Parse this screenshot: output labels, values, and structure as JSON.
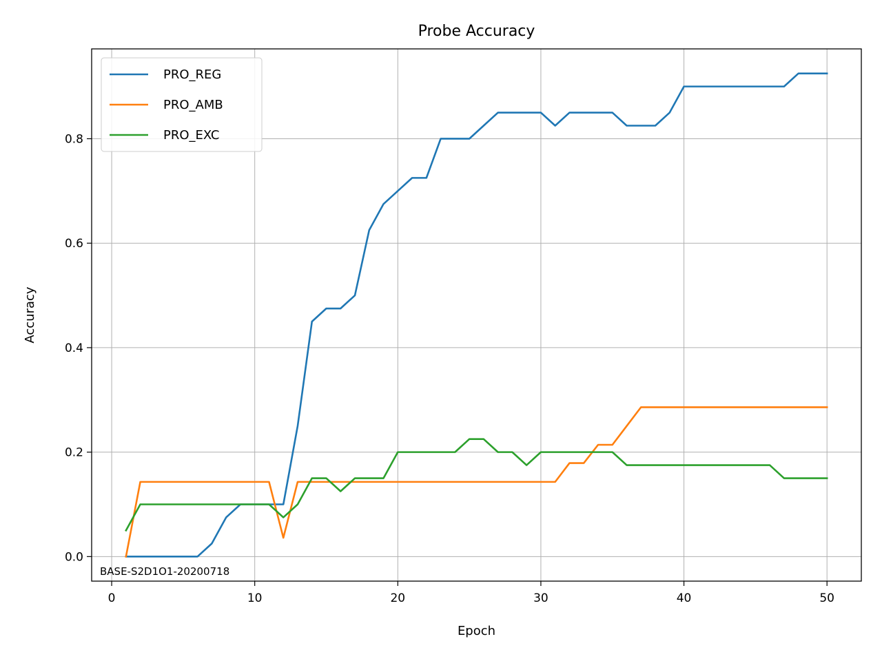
{
  "chart_data": {
    "type": "line",
    "title": "Probe Accuracy",
    "xlabel": "Epoch",
    "ylabel": "Accuracy",
    "xlim": [
      -1.4,
      52.4
    ],
    "ylim": [
      -0.047,
      0.972
    ],
    "xticks": [
      0,
      10,
      20,
      30,
      40,
      50
    ],
    "yticks": [
      0.0,
      0.2,
      0.4,
      0.6,
      0.8
    ],
    "xtick_labels": [
      "0",
      "10",
      "20",
      "30",
      "40",
      "50"
    ],
    "ytick_labels": [
      "0.0",
      "0.2",
      "0.4",
      "0.6",
      "0.8"
    ],
    "grid": true,
    "legend_position": "top-left",
    "annotation": "BASE-S2D1O1-20200718",
    "x": [
      1,
      2,
      3,
      4,
      5,
      6,
      7,
      8,
      9,
      10,
      11,
      12,
      13,
      14,
      15,
      16,
      17,
      18,
      19,
      20,
      21,
      22,
      23,
      24,
      25,
      26,
      27,
      28,
      29,
      30,
      31,
      32,
      33,
      34,
      35,
      36,
      37,
      38,
      39,
      40,
      41,
      42,
      43,
      44,
      45,
      46,
      47,
      48,
      49,
      50
    ],
    "series": [
      {
        "name": "PRO_REG",
        "color": "#1f77b4",
        "values": [
          0.0,
          0.0,
          0.0,
          0.0,
          0.0,
          0.0,
          0.025,
          0.075,
          0.1,
          0.1,
          0.1,
          0.1,
          0.25,
          0.45,
          0.475,
          0.475,
          0.5,
          0.625,
          0.675,
          0.7,
          0.725,
          0.725,
          0.8,
          0.8,
          0.8,
          0.825,
          0.85,
          0.85,
          0.85,
          0.85,
          0.825,
          0.85,
          0.85,
          0.85,
          0.85,
          0.825,
          0.825,
          0.825,
          0.85,
          0.9,
          0.9,
          0.9,
          0.9,
          0.9,
          0.9,
          0.9,
          0.9,
          0.925,
          0.925,
          0.925
        ]
      },
      {
        "name": "PRO_AMB",
        "color": "#ff7f0e",
        "values": [
          0.0,
          0.143,
          0.143,
          0.143,
          0.143,
          0.143,
          0.143,
          0.143,
          0.143,
          0.143,
          0.143,
          0.036,
          0.143,
          0.143,
          0.143,
          0.143,
          0.143,
          0.143,
          0.143,
          0.143,
          0.143,
          0.143,
          0.143,
          0.143,
          0.143,
          0.143,
          0.143,
          0.143,
          0.143,
          0.143,
          0.143,
          0.179,
          0.179,
          0.214,
          0.214,
          0.25,
          0.286,
          0.286,
          0.286,
          0.286,
          0.286,
          0.286,
          0.286,
          0.286,
          0.286,
          0.286,
          0.286,
          0.286,
          0.286,
          0.286
        ]
      },
      {
        "name": "PRO_EXC",
        "color": "#2ca02c",
        "values": [
          0.05,
          0.1,
          0.1,
          0.1,
          0.1,
          0.1,
          0.1,
          0.1,
          0.1,
          0.1,
          0.1,
          0.075,
          0.1,
          0.15,
          0.15,
          0.125,
          0.15,
          0.15,
          0.15,
          0.2,
          0.2,
          0.2,
          0.2,
          0.2,
          0.225,
          0.225,
          0.2,
          0.2,
          0.175,
          0.2,
          0.2,
          0.2,
          0.2,
          0.2,
          0.2,
          0.175,
          0.175,
          0.175,
          0.175,
          0.175,
          0.175,
          0.175,
          0.175,
          0.175,
          0.175,
          0.175,
          0.15,
          0.15,
          0.15,
          0.15
        ]
      }
    ]
  }
}
